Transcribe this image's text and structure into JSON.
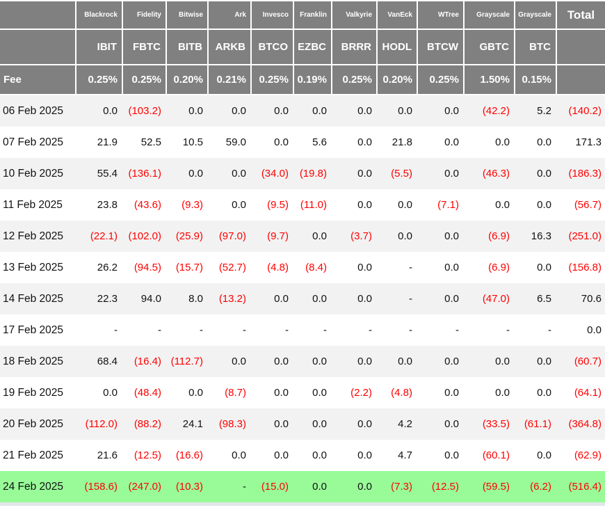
{
  "table": {
    "fee_label": "Fee",
    "total_label": "Total",
    "columns": [
      {
        "provider": "Blackrock",
        "ticker": "IBIT",
        "fee": "0.25%"
      },
      {
        "provider": "Fidelity",
        "ticker": "FBTC",
        "fee": "0.25%"
      },
      {
        "provider": "Bitwise",
        "ticker": "BITB",
        "fee": "0.20%"
      },
      {
        "provider": "Ark",
        "ticker": "ARKB",
        "fee": "0.21%"
      },
      {
        "provider": "Invesco",
        "ticker": "BTCO",
        "fee": "0.25%"
      },
      {
        "provider": "Franklin",
        "ticker": "EZBC",
        "fee": "0.19%"
      },
      {
        "provider": "Valkyrie",
        "ticker": "BRRR",
        "fee": "0.25%"
      },
      {
        "provider": "VanEck",
        "ticker": "HODL",
        "fee": "0.20%"
      },
      {
        "provider": "WTree",
        "ticker": "BTCW",
        "fee": "0.25%"
      },
      {
        "provider": "Grayscale",
        "ticker": "GBTC",
        "fee": "1.50%"
      },
      {
        "provider": "Grayscale",
        "ticker": "BTC",
        "fee": "0.15%"
      }
    ],
    "rows": [
      {
        "date": "06 Feb 2025",
        "values": [
          "0.0",
          "(103.2)",
          "0.0",
          "0.0",
          "0.0",
          "0.0",
          "0.0",
          "0.0",
          "0.0",
          "(42.2)",
          "5.2"
        ],
        "total": "(140.2)",
        "highlight": false
      },
      {
        "date": "07 Feb 2025",
        "values": [
          "21.9",
          "52.5",
          "10.5",
          "59.0",
          "0.0",
          "5.6",
          "0.0",
          "21.8",
          "0.0",
          "0.0",
          "0.0"
        ],
        "total": "171.3",
        "highlight": false
      },
      {
        "date": "10 Feb 2025",
        "values": [
          "55.4",
          "(136.1)",
          "0.0",
          "0.0",
          "(34.0)",
          "(19.8)",
          "0.0",
          "(5.5)",
          "0.0",
          "(46.3)",
          "0.0"
        ],
        "total": "(186.3)",
        "highlight": false
      },
      {
        "date": "11 Feb 2025",
        "values": [
          "23.8",
          "(43.6)",
          "(9.3)",
          "0.0",
          "(9.5)",
          "(11.0)",
          "0.0",
          "0.0",
          "(7.1)",
          "0.0",
          "0.0"
        ],
        "total": "(56.7)",
        "highlight": false
      },
      {
        "date": "12 Feb 2025",
        "values": [
          "(22.1)",
          "(102.0)",
          "(25.9)",
          "(97.0)",
          "(9.7)",
          "0.0",
          "(3.7)",
          "0.0",
          "0.0",
          "(6.9)",
          "16.3"
        ],
        "total": "(251.0)",
        "highlight": false
      },
      {
        "date": "13 Feb 2025",
        "values": [
          "26.2",
          "(94.5)",
          "(15.7)",
          "(52.7)",
          "(4.8)",
          "(8.4)",
          "0.0",
          "-",
          "0.0",
          "(6.9)",
          "0.0"
        ],
        "total": "(156.8)",
        "highlight": false
      },
      {
        "date": "14 Feb 2025",
        "values": [
          "22.3",
          "94.0",
          "8.0",
          "(13.2)",
          "0.0",
          "0.0",
          "0.0",
          "-",
          "0.0",
          "(47.0)",
          "6.5"
        ],
        "total": "70.6",
        "highlight": false
      },
      {
        "date": "17 Feb 2025",
        "values": [
          "-",
          "-",
          "-",
          "-",
          "-",
          "-",
          "-",
          "-",
          "-",
          "-",
          "-"
        ],
        "total": "0.0",
        "highlight": false
      },
      {
        "date": "18 Feb 2025",
        "values": [
          "68.4",
          "(16.4)",
          "(112.7)",
          "0.0",
          "0.0",
          "0.0",
          "0.0",
          "0.0",
          "0.0",
          "0.0",
          "0.0"
        ],
        "total": "(60.7)",
        "highlight": false
      },
      {
        "date": "19 Feb 2025",
        "values": [
          "0.0",
          "(48.4)",
          "0.0",
          "(8.7)",
          "0.0",
          "0.0",
          "(2.2)",
          "(4.8)",
          "0.0",
          "0.0",
          "0.0"
        ],
        "total": "(64.1)",
        "highlight": false
      },
      {
        "date": "20 Feb 2025",
        "values": [
          "(112.0)",
          "(88.2)",
          "24.1",
          "(98.3)",
          "0.0",
          "0.0",
          "0.0",
          "4.2",
          "0.0",
          "(33.5)",
          "(61.1)"
        ],
        "total": "(364.8)",
        "highlight": false
      },
      {
        "date": "21 Feb 2025",
        "values": [
          "21.6",
          "(12.5)",
          "(16.6)",
          "0.0",
          "0.0",
          "0.0",
          "0.0",
          "4.7",
          "0.0",
          "(60.1)",
          "0.0"
        ],
        "total": "(62.9)",
        "highlight": false
      },
      {
        "date": "24 Feb 2025",
        "values": [
          "(158.6)",
          "(247.0)",
          "(10.3)",
          "-",
          "(15.0)",
          "0.0",
          "0.0",
          "(7.3)",
          "(12.5)",
          "(59.5)",
          "(6.2)"
        ],
        "total": "(516.4)",
        "highlight": true
      }
    ]
  },
  "colors": {
    "header_bg": "#808080",
    "row_stripe": "#f2f2f2",
    "highlight_green": "#98fb98",
    "negative_red": "#ff0000",
    "bottom_strip": "#e2e6e9"
  }
}
